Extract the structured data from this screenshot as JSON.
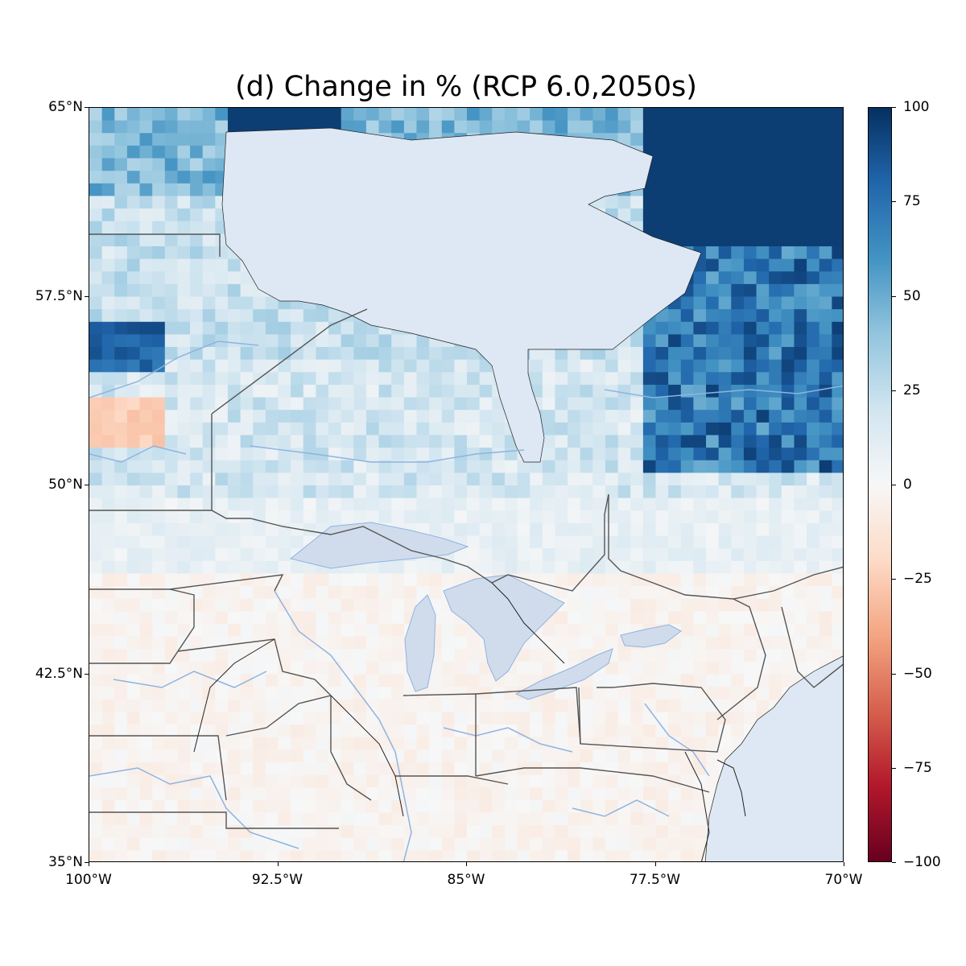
{
  "title": "(d) Change in % (RCP 6.0,2050s)",
  "lat_ticks": [
    "65°N",
    "57.5°N",
    "50°N",
    "42.5°N",
    "35°N"
  ],
  "lon_ticks": [
    "100°W",
    "92.5°W",
    "85°W",
    "77.5°W",
    "70°W"
  ],
  "colorbar": {
    "min": -100,
    "max": 100,
    "ticks": [
      "100",
      "75",
      "50",
      "25",
      "0",
      "−25",
      "−50",
      "−75",
      "−100"
    ],
    "colormap": "RdBu",
    "stops": [
      "#67001f",
      "#b2182b",
      "#d6604d",
      "#f4a582",
      "#fddbc7",
      "#f7f7f7",
      "#d1e5f0",
      "#92c5de",
      "#4393c3",
      "#2166ac",
      "#053061"
    ]
  },
  "map_extent": {
    "lon": [
      -100,
      -70
    ],
    "lat": [
      35,
      65
    ]
  },
  "colors": {
    "land_base": "#f5f5f5",
    "water_fill": "#dde8f4",
    "rivers": "#8fb3e0",
    "borders": "#555555",
    "coast": "#222222"
  }
}
